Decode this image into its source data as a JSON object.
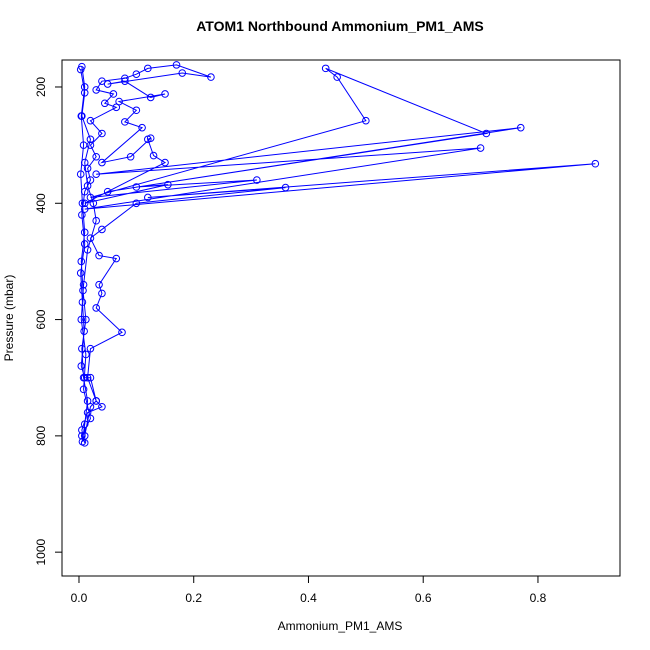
{
  "chart_data": {
    "type": "line",
    "title": "ATOM1 Northbound Ammonium_PM1_AMS",
    "xlabel": "Ammonium_PM1_AMS",
    "ylabel": "Pressure (mbar)",
    "color": "#0000ff",
    "markers": true,
    "xlim": [
      -0.0296,
      0.943
    ],
    "ylim": [
      1041,
      153.6
    ],
    "xticks": [
      {
        "value": 0,
        "label": "0.0"
      },
      {
        "value": 0.2,
        "label": "0.2"
      },
      {
        "value": 0.4,
        "label": "0.4"
      },
      {
        "value": 0.6,
        "label": "0.6"
      },
      {
        "value": 0.8,
        "label": "0.8"
      }
    ],
    "yticks": [
      200,
      400,
      600,
      800,
      1000
    ],
    "x": [
      0.005,
      0.01,
      0.004,
      0.008,
      0.003,
      0.006,
      0.01,
      0.004,
      0.007,
      0.012,
      0.005,
      0.008,
      0.015,
      0.01,
      0.006,
      0.01,
      0.02,
      0.03,
      0.015,
      0.02,
      0.075,
      0.03,
      0.04,
      0.035,
      0.065,
      0.035,
      0.02,
      0.04,
      0.1,
      0.36,
      0.12,
      0.9,
      0.01,
      0.7,
      0.03,
      0.77,
      0.05,
      0.71,
      0.43,
      0.45,
      0.5,
      0.02,
      0.31,
      0.1,
      0.155,
      0.01,
      0.15,
      0.13,
      0.12,
      0.125,
      0.09,
      0.04,
      0.11,
      0.08,
      0.1,
      0.07,
      0.15,
      0.125,
      0.08,
      0.05,
      0.18,
      0.23,
      0.17,
      0.12,
      0.1,
      0.08,
      0.04,
      0.03,
      0.06,
      0.045,
      0.065,
      0.02,
      0.04,
      0.02,
      0.03,
      0.015,
      0.02,
      0.01,
      0.005,
      0.01,
      0.003,
      0.006,
      0.009,
      0.004,
      0.01,
      0.02,
      0.03,
      0.04,
      0.015,
      0.005,
      0.01,
      0.005,
      0.02,
      0.008,
      0.012,
      0.004,
      0.008,
      0.015,
      0.03,
      0.025,
      0.015,
      0.01,
      0.02,
      0.005,
      0.01,
      0.003
    ],
    "values": [
      165,
      200,
      250,
      300,
      350,
      400,
      450,
      500,
      550,
      600,
      650,
      700,
      740,
      780,
      810,
      800,
      750,
      740,
      700,
      650,
      622,
      580,
      555,
      540,
      495,
      490,
      460,
      445,
      400,
      373,
      390,
      332,
      410,
      305,
      350,
      270,
      380,
      280,
      168,
      183,
      258,
      390,
      360,
      372,
      368,
      400,
      330,
      318,
      290,
      288,
      320,
      330,
      270,
      260,
      240,
      225,
      212,
      218,
      190,
      195,
      176,
      183,
      162,
      168,
      178,
      185,
      190,
      205,
      212,
      228,
      235,
      258,
      280,
      300,
      320,
      340,
      360,
      380,
      420,
      470,
      520,
      570,
      620,
      680,
      700,
      700,
      740,
      750,
      760,
      790,
      812,
      800,
      770,
      720,
      660,
      600,
      540,
      480,
      430,
      400,
      370,
      330,
      290,
      250,
      210,
      170
    ]
  }
}
